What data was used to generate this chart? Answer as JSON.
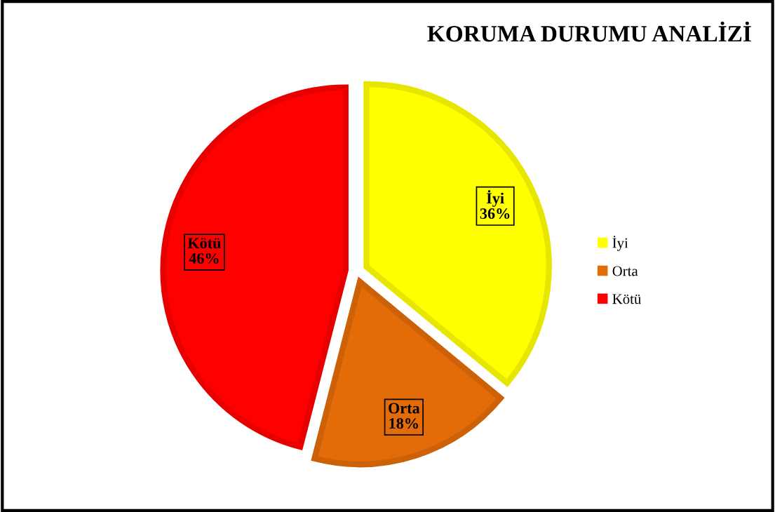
{
  "chart_data": {
    "type": "pie",
    "title": "KORUMA DURUMU ANALİZİ",
    "categories": [
      "İyi",
      "Orta",
      "Kötü"
    ],
    "values": [
      36,
      18,
      46
    ],
    "value_labels": [
      "36%",
      "18%",
      "46%"
    ],
    "colors": [
      "#ffff00",
      "#e36c09",
      "#ff0000"
    ],
    "legend": "right"
  }
}
